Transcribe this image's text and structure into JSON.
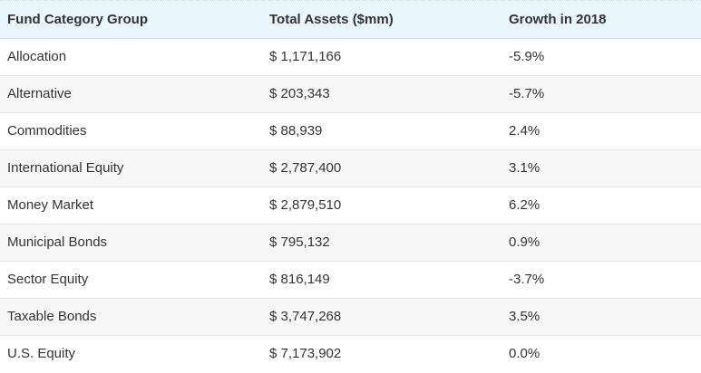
{
  "table": {
    "headers": [
      "Fund Category Group",
      "Total Assets ($mm)",
      "Growth in 2018"
    ],
    "rows": [
      [
        "Allocation",
        "$ 1,171,166",
        "-5.9%"
      ],
      [
        "Alternative",
        "$ 203,343",
        "-5.7%"
      ],
      [
        "Commodities",
        "$ 88,939",
        "2.4%"
      ],
      [
        "International Equity",
        "$ 2,787,400",
        "3.1%"
      ],
      [
        "Money Market",
        "$ 2,879,510",
        "6.2%"
      ],
      [
        "Municipal Bonds",
        "$ 795,132",
        "0.9%"
      ],
      [
        "Sector Equity",
        "$ 816,149",
        "-3.7%"
      ],
      [
        "Taxable Bonds",
        "$ 3,747,268",
        "3.5%"
      ],
      [
        "U.S. Equity",
        "$ 7,173,902",
        "0.0%"
      ]
    ]
  },
  "colors": {
    "header_bg": "#e9f6fd",
    "row_alt_bg": "#f7f7f7",
    "text": "#333333"
  }
}
